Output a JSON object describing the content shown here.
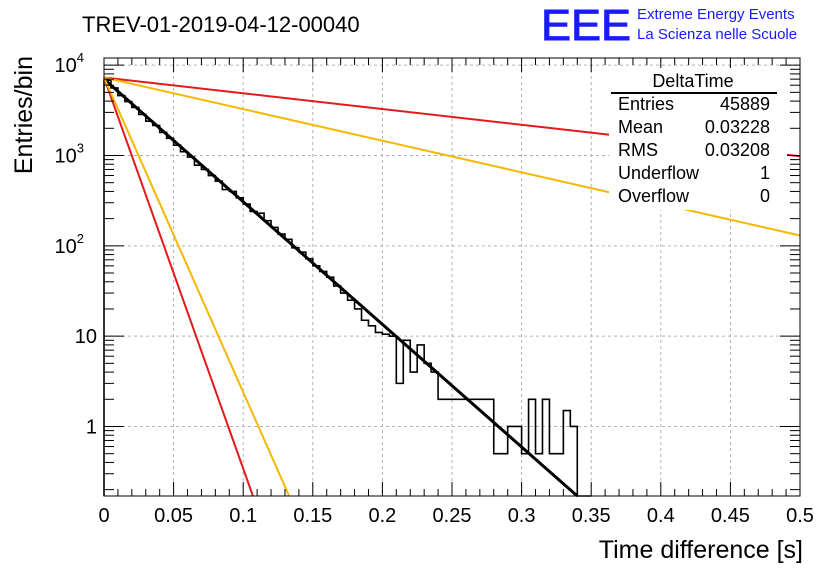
{
  "header": {
    "run_title": "TREV-01-2019-04-12-00040",
    "logo_text": "EEE",
    "project_line1": "Extreme Energy Events",
    "project_line2": "La Scienza nelle Scuole"
  },
  "stats": {
    "title": "DeltaTime",
    "rows": [
      {
        "label": "Entries",
        "value": "45889"
      },
      {
        "label": "Mean",
        "value": "0.03228"
      },
      {
        "label": "RMS",
        "value": "0.03208"
      },
      {
        "label": "Underflow",
        "value": "1"
      },
      {
        "label": "Overflow",
        "value": "0"
      }
    ]
  },
  "colors": {
    "histogram": "#000000",
    "fit": "#000000",
    "red_curve": "#e31a1c",
    "orange_curve": "#f5b800",
    "logo": "#1a1aff",
    "grid": "#b3b3b3"
  },
  "chart_data": {
    "type": "line",
    "title": "TREV-01-2019-04-12-00040",
    "xlabel": "Time difference [s]",
    "ylabel": "Entries/bin",
    "xlim": [
      0,
      0.5
    ],
    "ylim": [
      0.17,
      12000
    ],
    "yscale": "log",
    "grid": true,
    "x_ticks": [
      0,
      0.05,
      0.1,
      0.15,
      0.2,
      0.25,
      0.3,
      0.35,
      0.4,
      0.45,
      0.5
    ],
    "x_tick_labels": [
      "0",
      "0.05",
      "0.1",
      "0.15",
      "0.2",
      "0.25",
      "0.3",
      "0.35",
      "0.4",
      "0.45",
      "0.5"
    ],
    "y_ticks": [
      1,
      10,
      100,
      1000,
      10000
    ],
    "y_tick_labels": [
      "1",
      "10",
      "10^2",
      "10^3",
      "10^4"
    ],
    "histogram": {
      "bin_width": 0.005,
      "values": [
        6800,
        5600,
        4600,
        3950,
        3400,
        2850,
        2400,
        2150,
        1800,
        1550,
        1300,
        1100,
        960,
        780,
        700,
        600,
        520,
        420,
        400,
        340,
        290,
        240,
        230,
        190,
        160,
        135,
        118,
        95,
        85,
        72,
        60,
        52,
        45,
        36,
        30,
        25,
        20,
        15,
        13,
        11,
        10.5,
        10,
        3,
        9,
        4,
        8,
        5,
        4,
        2,
        2,
        2,
        2,
        2,
        2,
        2,
        2,
        0.5,
        0.5,
        1,
        1,
        0.5,
        2,
        0.5,
        2,
        0.5,
        0.5,
        1.5,
        1,
        0,
        0
      ]
    },
    "series": [
      {
        "x": [
          0,
          0.34
        ],
        "y": [
          7000,
          0.17
        ]
      },
      {
        "x": [
          0,
          0.5
        ],
        "y": [
          7300,
          980
        ]
      },
      {
        "x": [
          0,
          0.5
        ],
        "y": [
          7300,
          130
        ]
      },
      {
        "x": [
          0,
          0.107
        ],
        "y": [
          7300,
          0.17
        ]
      },
      {
        "x": [
          0,
          0.133
        ],
        "y": [
          7300,
          0.17
        ]
      }
    ]
  }
}
